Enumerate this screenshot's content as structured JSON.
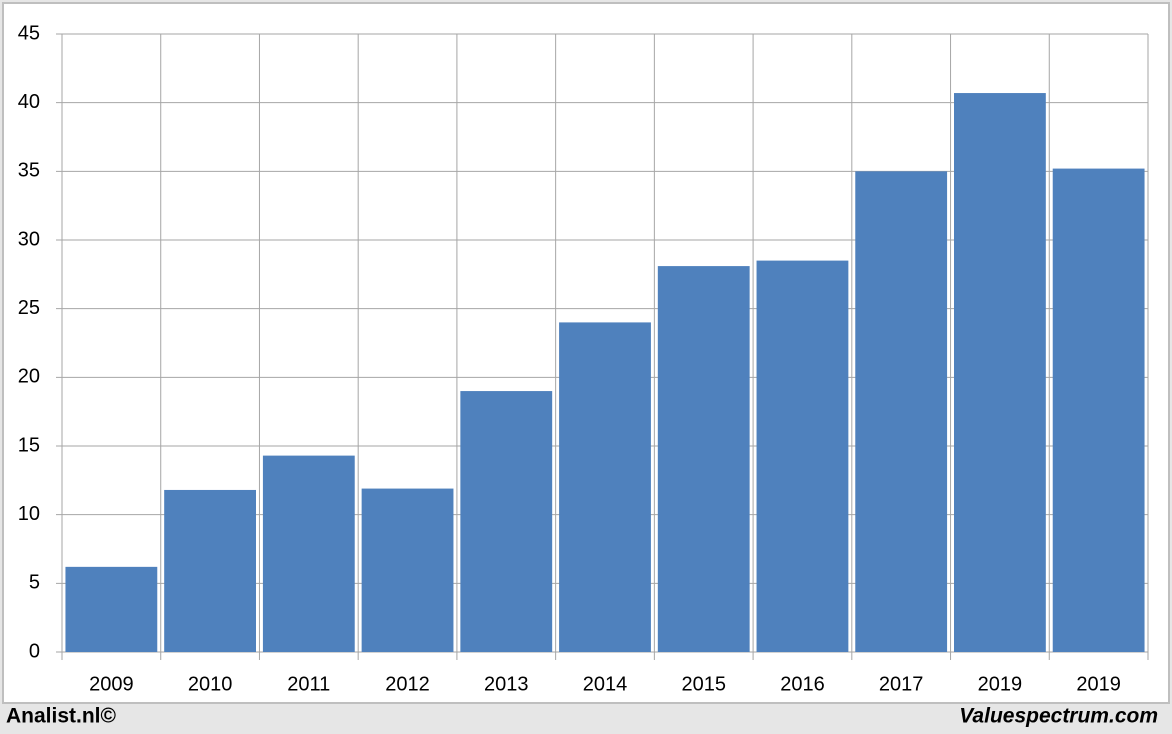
{
  "chart_data": {
    "type": "bar",
    "categories": [
      "2009",
      "2010",
      "2011",
      "2012",
      "2013",
      "2014",
      "2015",
      "2016",
      "2017",
      "2019",
      "2019"
    ],
    "values": [
      6.2,
      11.8,
      14.3,
      11.9,
      19,
      24,
      28.1,
      28.5,
      35,
      40.7,
      35.2
    ],
    "color": "#4f81bd",
    "ylim": [
      0,
      45
    ],
    "yticks": [
      0,
      5,
      10,
      15,
      20,
      25,
      30,
      35,
      40,
      45
    ],
    "grid": true,
    "footer_left": "Analist.nl©",
    "footer_right": "Valuespectrum.com"
  }
}
